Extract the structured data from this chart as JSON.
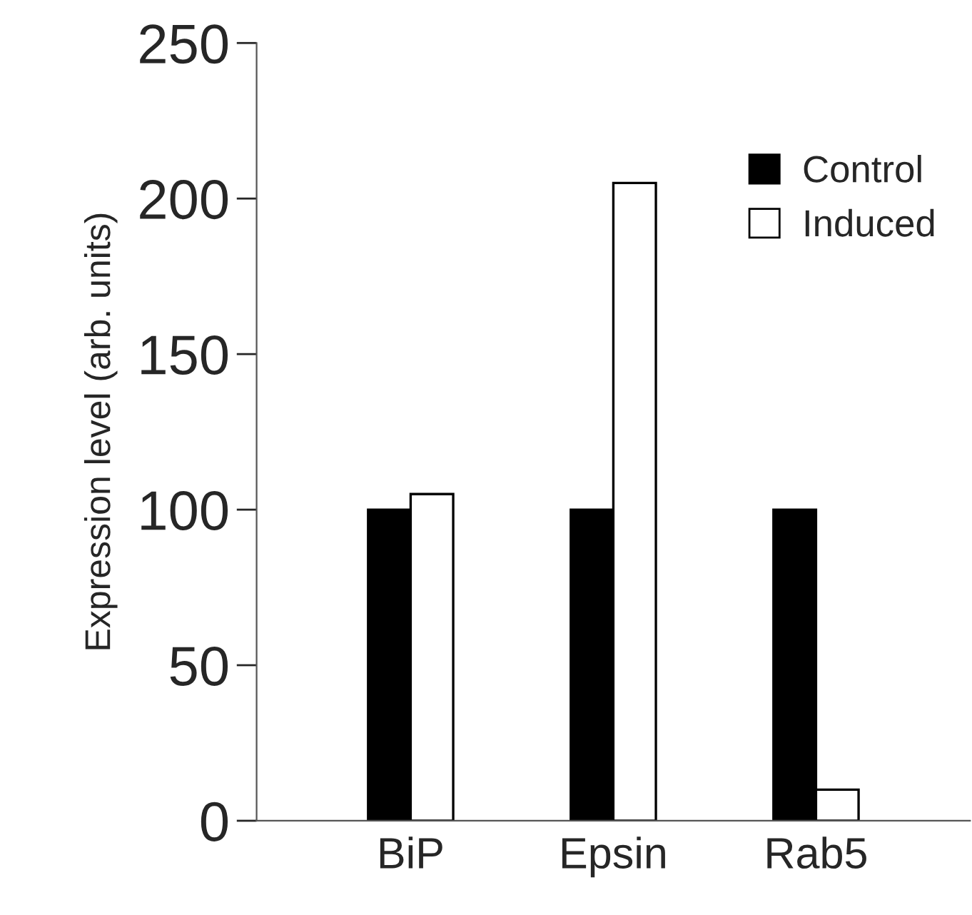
{
  "chart_data": {
    "type": "bar",
    "ylabel": "Expression level (arb. units)",
    "categories": [
      "BiP",
      "Epsin",
      "Rab5"
    ],
    "series": [
      {
        "name": "Control",
        "color": "#000000",
        "values": [
          100,
          100,
          100
        ]
      },
      {
        "name": "Induced",
        "color": "#ffffff",
        "values": [
          105,
          205,
          10
        ]
      }
    ],
    "ylim": [
      0,
      250
    ],
    "yticks": [
      0,
      50,
      100,
      150,
      200,
      250
    ],
    "grid": false,
    "legend": "top right"
  }
}
